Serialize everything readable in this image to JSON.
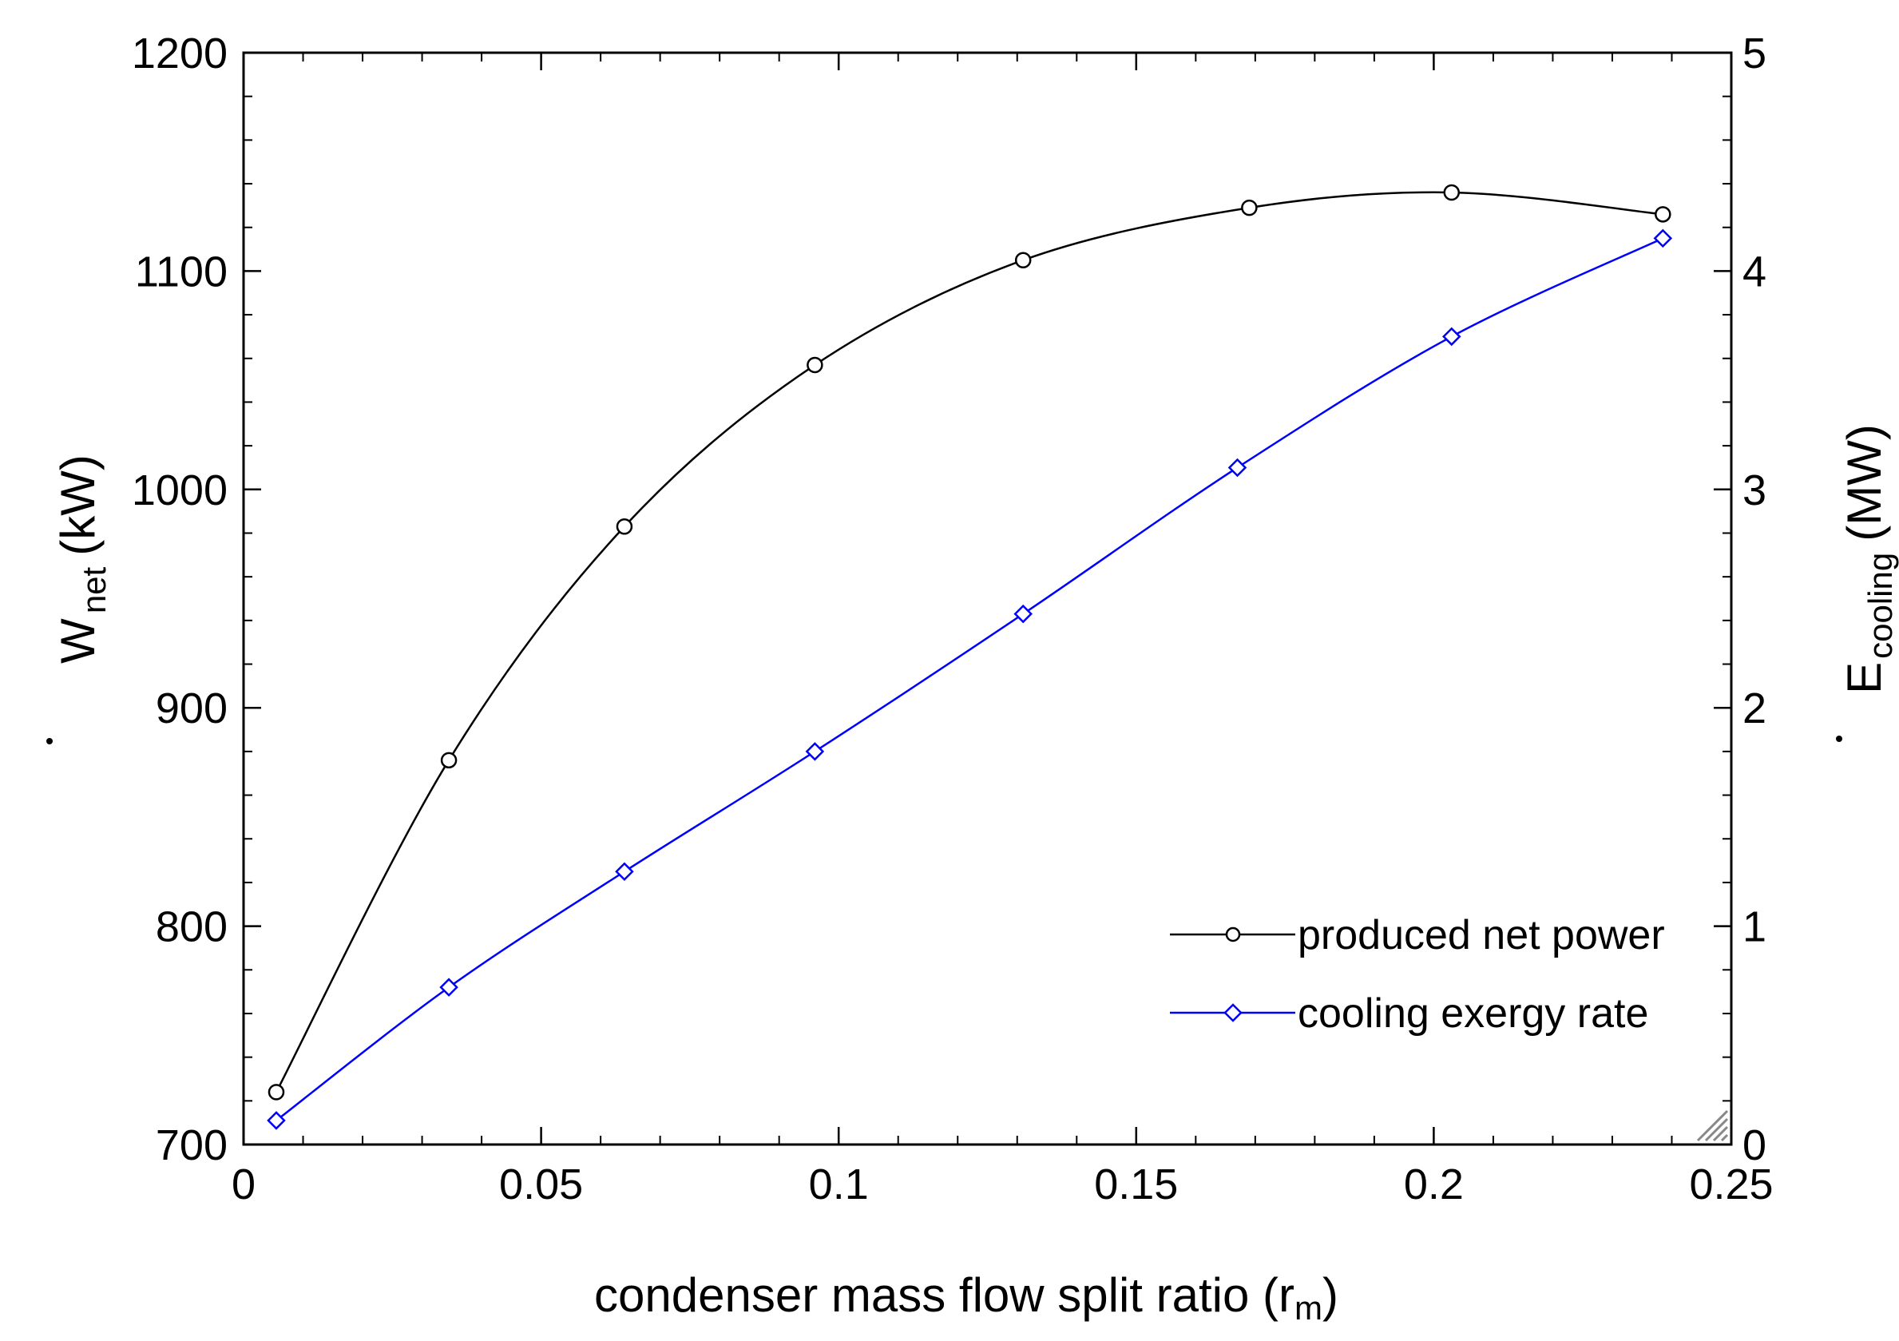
{
  "chart_data": {
    "type": "line",
    "title": "",
    "xlabel": "condenser mass flow split ratio (r",
    "xlabel_sub": "m",
    "xlabel_close": ")",
    "ylabel_left_main": "W",
    "ylabel_left_sub": "net",
    "ylabel_left_unit": "(kW)",
    "ylabel_right_main": "E",
    "ylabel_right_sub": "cooling",
    "ylabel_right_unit": "(MW)",
    "xlim": [
      0,
      0.25
    ],
    "ylim_left": [
      700,
      1200
    ],
    "ylim_right": [
      0,
      5
    ],
    "x_ticks": [
      "0",
      "0.05",
      "0.1",
      "0.15",
      "0.2",
      "0.25"
    ],
    "y_left_ticks": [
      "700",
      "800",
      "900",
      "1000",
      "1100",
      "1200"
    ],
    "y_right_ticks": [
      "0",
      "1",
      "2",
      "3",
      "4",
      "5"
    ],
    "grid": false,
    "legend_position": "lower-right",
    "series": [
      {
        "name": "produced net power",
        "axis": "left",
        "color": "#000000",
        "marker": "circle",
        "x": [
          0.0055,
          0.0345,
          0.064,
          0.096,
          0.131,
          0.169,
          0.203,
          0.2385
        ],
        "y": [
          724,
          876,
          983,
          1057,
          1105,
          1129,
          1136,
          1126
        ]
      },
      {
        "name": "cooling exergy rate",
        "axis": "right",
        "color": "#0000ff",
        "marker": "diamond",
        "x": [
          0.0055,
          0.0345,
          0.064,
          0.096,
          0.131,
          0.167,
          0.203,
          0.2385
        ],
        "y": [
          0.11,
          0.72,
          1.25,
          1.8,
          2.43,
          3.1,
          3.7,
          4.15
        ]
      }
    ]
  }
}
